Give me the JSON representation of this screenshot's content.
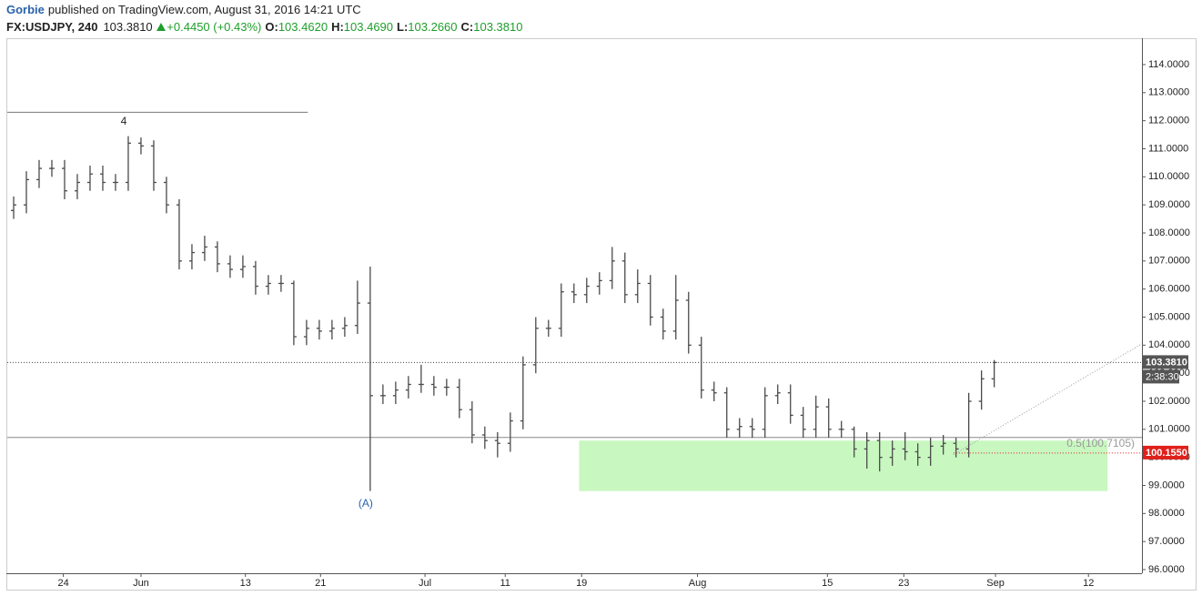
{
  "header": {
    "author": "Gorbie",
    "published": "published on TradingView.com, August 31, 2016 14:21 UTC",
    "symbol": "FX:USDJPY, 240",
    "price": "103.3810",
    "change": "+0.4450 (+0.43%)",
    "ohlc": [
      {
        "label": "O:",
        "value": "103.4620"
      },
      {
        "label": "H:",
        "value": "103.4690"
      },
      {
        "label": "L:",
        "value": "103.2660"
      },
      {
        "label": "C:",
        "value": "103.3810"
      }
    ]
  },
  "chart_data": {
    "type": "ohlc",
    "color": "#4a4a4a",
    "xlim": [
      0,
      89.1
    ],
    "ylim": [
      95.87,
      114.94
    ],
    "xticks": [
      {
        "value": 4.4,
        "label": "24"
      },
      {
        "value": 10.5,
        "label": "Jun"
      },
      {
        "value": 18.7,
        "label": "13"
      },
      {
        "value": 24.6,
        "label": "21"
      },
      {
        "value": 32.8,
        "label": "Jul"
      },
      {
        "value": 39.1,
        "label": "11"
      },
      {
        "value": 45.1,
        "label": "19"
      },
      {
        "value": 54.2,
        "label": "Aug"
      },
      {
        "value": 64.4,
        "label": "15"
      },
      {
        "value": 70.4,
        "label": "23"
      },
      {
        "value": 77.6,
        "label": "Sep"
      },
      {
        "value": 84.9,
        "label": "12"
      }
    ],
    "yticks": [
      {
        "value": 96,
        "label": "96.0000"
      },
      {
        "value": 97,
        "label": "97.0000"
      },
      {
        "value": 98,
        "label": "98.0000"
      },
      {
        "value": 99,
        "label": "99.0000"
      },
      {
        "value": 100,
        "label": "100.0000"
      },
      {
        "value": 101,
        "label": "101.0000"
      },
      {
        "value": 102,
        "label": "102.0000"
      },
      {
        "value": 103,
        "label": "103.0000"
      },
      {
        "value": 104,
        "label": "104.0000"
      },
      {
        "value": 105,
        "label": "105.0000"
      },
      {
        "value": 106,
        "label": "106.0000"
      },
      {
        "value": 107,
        "label": "107.0000"
      },
      {
        "value": 108,
        "label": "108.0000"
      },
      {
        "value": 109,
        "label": "109.0000"
      },
      {
        "value": 110,
        "label": "110.0000"
      },
      {
        "value": 111,
        "label": "111.0000"
      },
      {
        "value": 112,
        "label": "112.0000"
      },
      {
        "value": 113,
        "label": "113.0000"
      },
      {
        "value": 114,
        "label": "114.0000"
      }
    ],
    "open": [
      108.8,
      109.0,
      109.9,
      110.3,
      110.3,
      109.5,
      109.8,
      110.1,
      109.8,
      109.8,
      111.2,
      111.1,
      109.8,
      109.0,
      107.0,
      107.3,
      107.5,
      106.9,
      106.7,
      106.8,
      106.1,
      106.2,
      106.2,
      104.3,
      104.6,
      104.5,
      104.6,
      104.7,
      105.5,
      102.2,
      102.2,
      102.4,
      102.6,
      102.6,
      102.5,
      102.5,
      101.7,
      100.8,
      100.6,
      100.5,
      101.3,
      103.3,
      104.6,
      104.6,
      105.9,
      105.8,
      106.1,
      106.3,
      107.0,
      105.8,
      106.2,
      105.0,
      104.5,
      105.6,
      104.0,
      102.4,
      102.3,
      101.0,
      101.1,
      101.0,
      102.2,
      102.3,
      101.5,
      101.0,
      101.8,
      101.0,
      101.0,
      100.3,
      100.6,
      100.0,
      100.3,
      100.2,
      100.0,
      100.4,
      100.5,
      100.3,
      102.0,
      102.8
    ],
    "high": [
      109.3,
      110.2,
      110.6,
      110.6,
      110.6,
      110.1,
      110.4,
      110.4,
      110.1,
      111.45,
      111.4,
      111.3,
      110.0,
      109.2,
      107.6,
      107.9,
      107.7,
      107.2,
      107.2,
      107.0,
      106.5,
      106.5,
      106.3,
      104.9,
      104.9,
      104.9,
      105.0,
      106.3,
      106.8,
      102.6,
      102.7,
      102.9,
      103.3,
      102.9,
      102.8,
      102.8,
      102.0,
      101.1,
      100.9,
      101.6,
      103.6,
      105.0,
      104.9,
      106.2,
      106.2,
      106.4,
      106.6,
      107.5,
      107.3,
      106.7,
      106.5,
      105.3,
      106.5,
      105.9,
      104.3,
      102.7,
      102.5,
      101.4,
      101.4,
      102.5,
      102.6,
      102.6,
      101.8,
      102.2,
      102.1,
      101.3,
      101.1,
      100.9,
      100.9,
      100.6,
      100.9,
      100.5,
      100.7,
      100.8,
      100.7,
      102.3,
      103.1,
      103.469
    ],
    "low": [
      108.5,
      108.7,
      109.6,
      110.0,
      109.2,
      109.2,
      109.5,
      109.5,
      109.5,
      109.5,
      110.8,
      109.5,
      108.7,
      106.7,
      106.7,
      107.0,
      106.6,
      106.4,
      106.4,
      105.8,
      105.8,
      105.9,
      104.0,
      104.0,
      104.2,
      104.2,
      104.3,
      104.4,
      98.8,
      101.9,
      101.9,
      102.1,
      102.3,
      102.2,
      102.2,
      101.4,
      100.5,
      100.3,
      100.0,
      100.2,
      101.0,
      103.0,
      104.3,
      104.3,
      105.5,
      105.5,
      105.8,
      106.0,
      105.5,
      105.5,
      104.7,
      104.2,
      104.2,
      103.7,
      102.1,
      102.0,
      100.7,
      100.7,
      100.7,
      100.7,
      101.9,
      101.2,
      100.7,
      100.7,
      100.7,
      100.7,
      100.0,
      99.6,
      99.5,
      99.7,
      99.9,
      99.7,
      99.7,
      100.1,
      100.0,
      100.0,
      101.7,
      102.5
    ],
    "close": [
      109.0,
      109.9,
      110.3,
      110.3,
      109.5,
      109.8,
      110.1,
      109.8,
      109.8,
      111.2,
      111.1,
      109.8,
      109.0,
      107.0,
      107.3,
      107.5,
      106.9,
      106.7,
      106.8,
      106.1,
      106.2,
      106.2,
      104.3,
      104.6,
      104.5,
      104.6,
      104.7,
      105.5,
      102.2,
      102.2,
      102.4,
      102.6,
      102.6,
      102.5,
      102.5,
      101.7,
      100.8,
      100.6,
      100.5,
      101.3,
      103.3,
      104.6,
      104.6,
      105.9,
      105.8,
      106.1,
      106.3,
      107.0,
      105.8,
      106.2,
      105.0,
      104.5,
      105.6,
      104.0,
      102.4,
      102.3,
      101.0,
      101.1,
      101.0,
      102.2,
      102.3,
      101.5,
      101.0,
      101.8,
      101.0,
      101.0,
      100.3,
      100.6,
      100.0,
      100.3,
      100.2,
      100.0,
      100.4,
      100.5,
      100.3,
      102.0,
      102.8,
      103.381
    ],
    "resistance": {
      "value": 112.3,
      "x": [
        0,
        23.6
      ]
    },
    "zone": {
      "x": [
        44.9,
        86.4
      ],
      "y": [
        98.8,
        100.6
      ],
      "color": "#c8f7c0"
    },
    "fib": {
      "value": 100.7105,
      "label": "0.5(100.7105)"
    },
    "trendline": {
      "x": [
        74.3,
        89.1
      ],
      "y": [
        100.1,
        104.05
      ]
    },
    "last_price": {
      "value": 103.381,
      "label": "103.3810",
      "countdown": "2:38:30"
    },
    "alert_price": {
      "value": 100.155,
      "label": "100.1550",
      "color": "#e0201b"
    },
    "annotations": [
      {
        "text": "4",
        "x": 9,
        "y": 111.45,
        "color": "#222"
      },
      {
        "text": "(A)",
        "x": 28,
        "y": 98.8,
        "color": "#2962ad"
      }
    ]
  }
}
